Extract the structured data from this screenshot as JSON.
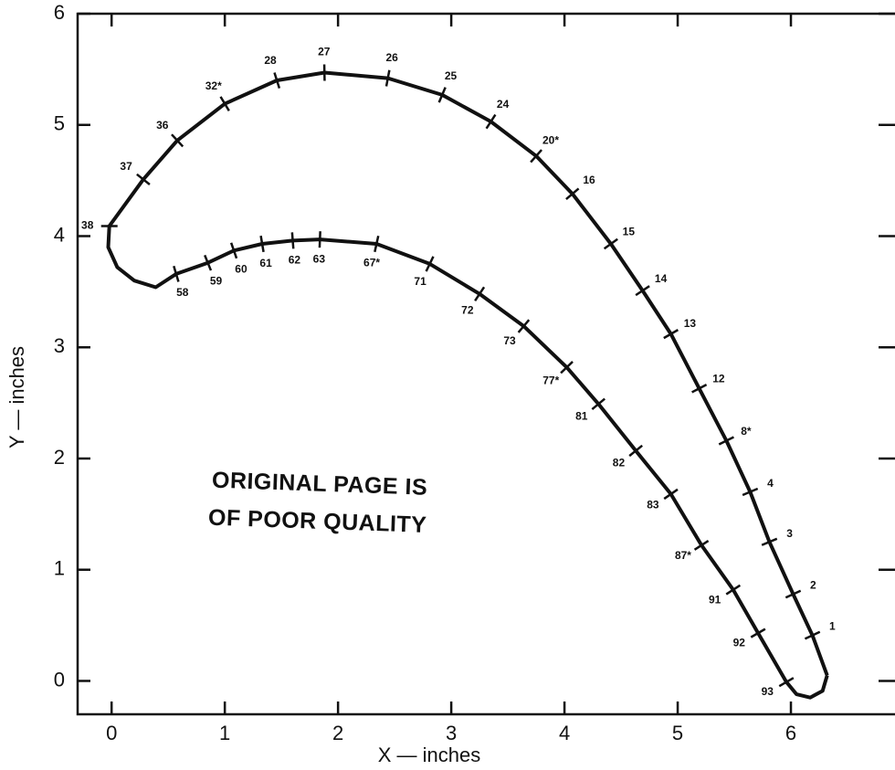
{
  "chart_data": {
    "type": "line",
    "xlabel": "X — inches",
    "ylabel": "Y — inches",
    "xlim": [
      -0.3,
      7
    ],
    "ylim": [
      -0.3,
      6
    ],
    "xticks": [
      0,
      1,
      2,
      3,
      4,
      5,
      6
    ],
    "yticks": [
      0,
      1,
      2,
      3,
      4,
      5,
      6
    ],
    "annotations": [
      "ORIGINAL PAGE IS",
      "OF POOR QUALITY"
    ],
    "series": [
      {
        "color": "#111111",
        "x": [
          6.32,
          6.19,
          6.02,
          5.81,
          5.64,
          5.43,
          5.19,
          4.94,
          4.69,
          4.41,
          4.07,
          3.75,
          3.35,
          2.92,
          2.44,
          1.88,
          1.46,
          1.0,
          0.58,
          0.28,
          -0.02,
          -0.03,
          0.05,
          0.2,
          0.39,
          0.57,
          0.85,
          1.08,
          1.33,
          1.6,
          1.84,
          2.34,
          2.81,
          3.25,
          3.64,
          4.02,
          4.3,
          4.63,
          4.94,
          5.21,
          5.49,
          5.71,
          5.96,
          6.05,
          6.17,
          6.28,
          6.32
        ],
        "values": [
          0.05,
          0.41,
          0.78,
          1.25,
          1.7,
          2.16,
          2.63,
          3.12,
          3.51,
          3.93,
          4.38,
          4.72,
          5.03,
          5.27,
          5.42,
          5.47,
          5.4,
          5.19,
          4.86,
          4.51,
          4.09,
          3.9,
          3.72,
          3.6,
          3.54,
          3.66,
          3.76,
          3.87,
          3.93,
          3.96,
          3.97,
          3.93,
          3.75,
          3.48,
          3.19,
          2.82,
          2.49,
          2.07,
          1.68,
          1.22,
          0.82,
          0.43,
          -0.01,
          -0.12,
          -0.15,
          -0.09,
          0.05
        ]
      }
    ],
    "taps": {
      "labels": [
        "1",
        "2",
        "3",
        "4",
        "8*",
        "12",
        "13",
        "14",
        "15",
        "16",
        "20*",
        "24",
        "25",
        "26",
        "27",
        "28",
        "32*",
        "36",
        "37",
        "38",
        "58",
        "59",
        "60",
        "61",
        "62",
        "63",
        "67*",
        "71",
        "72",
        "73",
        "77*",
        "81",
        "82",
        "83",
        "87*",
        "91",
        "92",
        "93"
      ],
      "x": [
        6.19,
        6.02,
        5.81,
        5.64,
        5.43,
        5.19,
        4.94,
        4.69,
        4.41,
        4.07,
        3.75,
        3.35,
        2.92,
        2.44,
        1.88,
        1.46,
        1.0,
        0.58,
        0.28,
        -0.02,
        0.57,
        0.85,
        1.08,
        1.33,
        1.6,
        1.84,
        2.34,
        2.81,
        3.25,
        3.64,
        4.02,
        4.3,
        4.63,
        4.94,
        5.21,
        5.49,
        5.71,
        5.96
      ],
      "y": [
        0.41,
        0.78,
        1.25,
        1.7,
        2.16,
        2.63,
        3.12,
        3.51,
        3.93,
        4.38,
        4.72,
        5.03,
        5.27,
        5.42,
        5.47,
        5.4,
        5.19,
        4.86,
        4.51,
        4.09,
        3.66,
        3.76,
        3.87,
        3.93,
        3.96,
        3.97,
        3.93,
        3.75,
        3.48,
        3.19,
        2.82,
        2.49,
        2.07,
        1.68,
        1.22,
        0.82,
        0.43,
        -0.01
      ]
    }
  }
}
